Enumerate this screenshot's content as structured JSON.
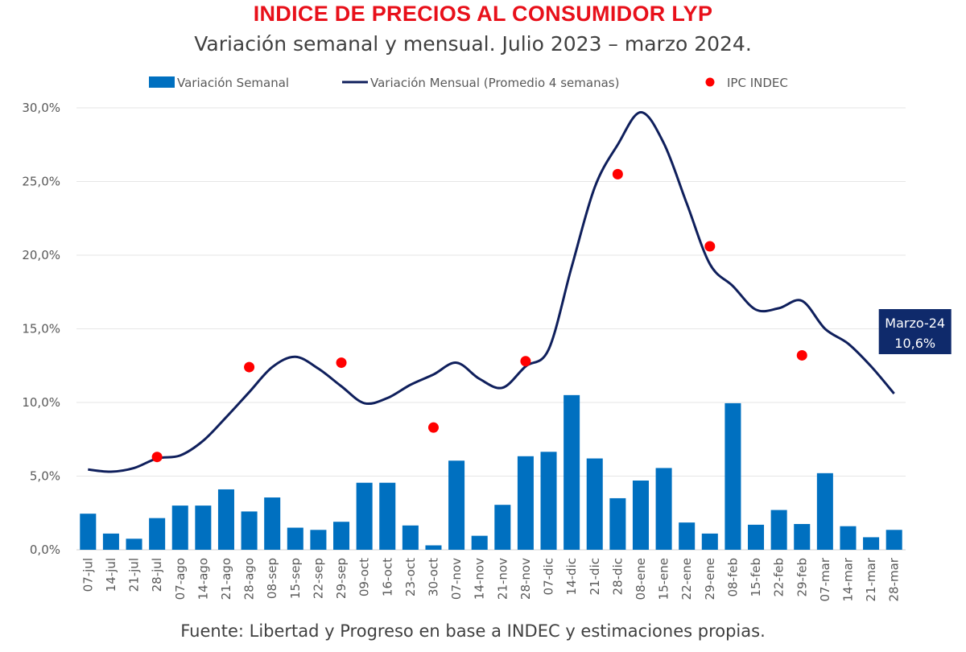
{
  "chart_data": {
    "type": "bar+line+scatter",
    "title": "INDICE DE PRECIOS AL CONSUMIDOR LYP",
    "subtitle": "Variación semanal y mensual. Julio 2023 – marzo 2024.",
    "source": "Fuente: Libertad y Progreso en base a INDEC y estimaciones propias.",
    "ylim": [
      0,
      30
    ],
    "yticks": [
      "0,0%",
      "5,0%",
      "10,0%",
      "15,0%",
      "20,0%",
      "25,0%",
      "30,0%"
    ],
    "grid": true,
    "legend_position": "top",
    "categories": [
      "07-jul",
      "14-jul",
      "21-jul",
      "28-jul",
      "07-ago",
      "14-ago",
      "21-ago",
      "28-ago",
      "08-sep",
      "15-sep",
      "22-sep",
      "29-sep",
      "09-oct",
      "16-oct",
      "23-oct",
      "30-oct",
      "07-nov",
      "14-nov",
      "21-nov",
      "28-nov",
      "07-dic",
      "14-dic",
      "21-dic",
      "28-dic",
      "08-ene",
      "15-ene",
      "22-ene",
      "29-ene",
      "08-feb",
      "15-feb",
      "22-feb",
      "29-feb",
      "07-mar",
      "14-mar",
      "21-mar",
      "28-mar"
    ],
    "series": [
      {
        "name": "Variación Semanal",
        "type": "bar",
        "color": "#0070c0",
        "values": [
          2.45,
          1.1,
          0.75,
          2.15,
          3.0,
          3.0,
          4.1,
          2.6,
          3.55,
          1.5,
          1.35,
          1.9,
          4.55,
          4.55,
          1.65,
          0.3,
          6.05,
          0.95,
          3.05,
          6.35,
          6.65,
          10.5,
          6.2,
          3.5,
          4.7,
          5.55,
          1.85,
          1.1,
          9.95,
          1.7,
          2.7,
          1.75,
          5.2,
          1.6,
          0.85,
          1.35
        ]
      },
      {
        "name": "Variación Mensual (Promedio 4 semanas)",
        "type": "line",
        "color": "#0f1f5c",
        "values": [
          5.45,
          5.3,
          5.55,
          6.2,
          6.4,
          7.4,
          9.0,
          10.7,
          12.4,
          13.1,
          12.3,
          11.1,
          9.95,
          10.3,
          11.2,
          11.9,
          12.7,
          11.6,
          11.0,
          12.45,
          13.6,
          19.2,
          24.6,
          27.5,
          29.7,
          27.6,
          23.5,
          19.4,
          17.9,
          16.3,
          16.4,
          16.9,
          15.0,
          14.0,
          12.45,
          10.6
        ]
      },
      {
        "name": "IPC INDEC",
        "type": "scatter",
        "color": "#ff0000",
        "points": [
          {
            "x": "28-jul",
            "y": 6.3
          },
          {
            "x": "28-ago",
            "y": 12.4
          },
          {
            "x": "29-sep",
            "y": 12.7
          },
          {
            "x": "30-oct",
            "y": 8.3
          },
          {
            "x": "28-nov",
            "y": 12.8
          },
          {
            "x": "28-dic",
            "y": 25.5
          },
          {
            "x": "29-ene",
            "y": 20.6
          },
          {
            "x": "29-feb",
            "y": 13.2
          }
        ]
      }
    ],
    "annotation": {
      "x": "28-mar",
      "line1": "Marzo-24",
      "line2": "10,6%",
      "color": "#0f2a6b"
    }
  }
}
